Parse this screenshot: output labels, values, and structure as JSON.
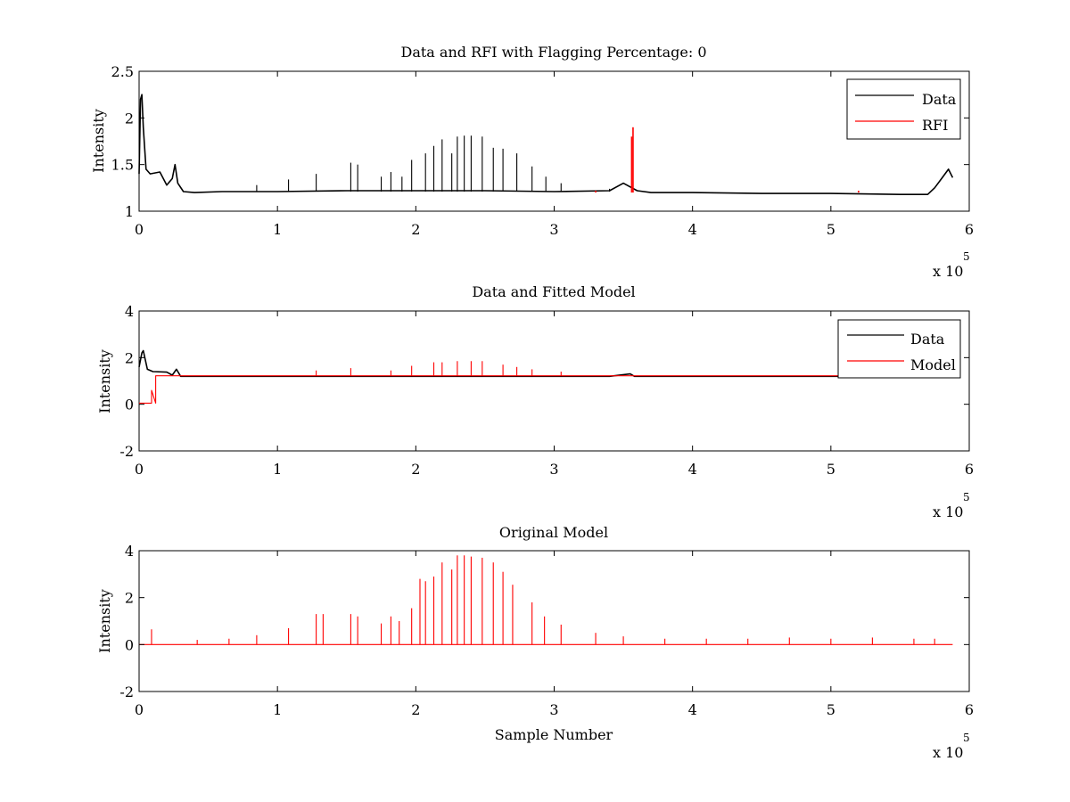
{
  "figure": {
    "background": "#ffffff"
  },
  "colors": {
    "data": "#000000",
    "rfi": "#ff0000",
    "model": "#ff0000"
  },
  "chart_data": [
    {
      "type": "line",
      "title": "Data and RFI with Flagging Percentage: 0",
      "xlabel": "",
      "ylabel": "Intensity",
      "xlim": [
        0,
        600000
      ],
      "ylim": [
        1,
        2.5
      ],
      "xticks": [
        0,
        100000,
        200000,
        300000,
        400000,
        500000,
        600000
      ],
      "xtick_labels": [
        "0",
        "1",
        "2",
        "3",
        "4",
        "5",
        "6"
      ],
      "yticks": [
        1,
        1.5,
        2,
        2.5
      ],
      "ytick_labels": [
        "1",
        "1.5",
        "2",
        "2.5"
      ],
      "x_multiplier_base": "x 10",
      "x_multiplier_exp": "5",
      "grid": false,
      "legend": {
        "position": "top-right",
        "entries": [
          "Data",
          "RFI"
        ]
      },
      "series": [
        {
          "name": "Data",
          "color": "#000000",
          "x": [
            0,
            1000,
            2000,
            3000,
            5000,
            8000,
            15000,
            20000,
            24000,
            26000,
            28000,
            32000,
            40000,
            60000,
            100000,
            150000,
            200000,
            250000,
            300000,
            340000,
            350000,
            360000,
            370000,
            400000,
            450000,
            500000,
            550000,
            570000,
            575000,
            580000,
            585000,
            588000
          ],
          "y": [
            1.4,
            2.2,
            2.25,
            1.9,
            1.45,
            1.4,
            1.42,
            1.28,
            1.35,
            1.5,
            1.3,
            1.21,
            1.2,
            1.21,
            1.21,
            1.22,
            1.22,
            1.22,
            1.21,
            1.22,
            1.3,
            1.22,
            1.2,
            1.2,
            1.19,
            1.19,
            1.18,
            1.18,
            1.25,
            1.35,
            1.45,
            1.36
          ],
          "spikes": [
            {
              "x": 85000,
              "y": 1.28
            },
            {
              "x": 108000,
              "y": 1.34
            },
            {
              "x": 128000,
              "y": 1.4
            },
            {
              "x": 153000,
              "y": 1.52
            },
            {
              "x": 158000,
              "y": 1.5
            },
            {
              "x": 175000,
              "y": 1.37
            },
            {
              "x": 182000,
              "y": 1.42
            },
            {
              "x": 190000,
              "y": 1.37
            },
            {
              "x": 197000,
              "y": 1.55
            },
            {
              "x": 207000,
              "y": 1.62
            },
            {
              "x": 213000,
              "y": 1.7
            },
            {
              "x": 219000,
              "y": 1.77
            },
            {
              "x": 226000,
              "y": 1.62
            },
            {
              "x": 230000,
              "y": 1.8
            },
            {
              "x": 235000,
              "y": 1.81
            },
            {
              "x": 240000,
              "y": 1.81
            },
            {
              "x": 248000,
              "y": 1.8
            },
            {
              "x": 256000,
              "y": 1.68
            },
            {
              "x": 263000,
              "y": 1.67
            },
            {
              "x": 273000,
              "y": 1.62
            },
            {
              "x": 284000,
              "y": 1.48
            },
            {
              "x": 294000,
              "y": 1.37
            },
            {
              "x": 305000,
              "y": 1.3
            },
            {
              "x": 340000,
              "y": 1.24
            }
          ]
        },
        {
          "name": "RFI",
          "color": "#ff0000",
          "x": [
            330000,
            356000,
            357000,
            520000
          ],
          "y": [
            1.22,
            1.8,
            1.9,
            1.22
          ]
        }
      ]
    },
    {
      "type": "line",
      "title": "Data and Fitted Model",
      "xlabel": "",
      "ylabel": "Intensity",
      "xlim": [
        0,
        600000
      ],
      "ylim": [
        -2,
        4
      ],
      "xticks": [
        0,
        100000,
        200000,
        300000,
        400000,
        500000,
        600000
      ],
      "xtick_labels": [
        "0",
        "1",
        "2",
        "3",
        "4",
        "5",
        "6"
      ],
      "yticks": [
        -2,
        0,
        2,
        4
      ],
      "ytick_labels": [
        "-2",
        "0",
        "2",
        "4"
      ],
      "x_multiplier_base": "x 10",
      "x_multiplier_exp": "5",
      "grid": false,
      "legend": {
        "position": "top-right",
        "entries": [
          "Data",
          "Model"
        ]
      },
      "series": [
        {
          "name": "Data",
          "color": "#000000",
          "x": [
            0,
            2000,
            3000,
            6000,
            10000,
            20000,
            24000,
            27000,
            30000,
            40000,
            340000,
            355000,
            358000,
            365000,
            510000
          ],
          "y": [
            1.6,
            2.2,
            2.3,
            1.5,
            1.4,
            1.38,
            1.25,
            1.5,
            1.2,
            1.2,
            1.2,
            1.3,
            1.2,
            1.2,
            1.2
          ]
        },
        {
          "name": "Model",
          "color": "#ff0000",
          "x": [
            0,
            9000,
            9000,
            12000,
            12000,
            510000
          ],
          "y": [
            0.05,
            0.05,
            0.6,
            0.05,
            1.22,
            1.22
          ],
          "spikes": [
            {
              "x": 128000,
              "y": 1.45
            },
            {
              "x": 153000,
              "y": 1.55
            },
            {
              "x": 182000,
              "y": 1.45
            },
            {
              "x": 197000,
              "y": 1.65
            },
            {
              "x": 213000,
              "y": 1.8
            },
            {
              "x": 219000,
              "y": 1.8
            },
            {
              "x": 230000,
              "y": 1.85
            },
            {
              "x": 240000,
              "y": 1.85
            },
            {
              "x": 248000,
              "y": 1.85
            },
            {
              "x": 263000,
              "y": 1.7
            },
            {
              "x": 273000,
              "y": 1.6
            },
            {
              "x": 284000,
              "y": 1.5
            },
            {
              "x": 305000,
              "y": 1.4
            }
          ]
        }
      ]
    },
    {
      "type": "line",
      "title": "Original Model",
      "xlabel": "Sample Number",
      "ylabel": "Intensity",
      "xlim": [
        0,
        600000
      ],
      "ylim": [
        -2,
        4
      ],
      "xticks": [
        0,
        100000,
        200000,
        300000,
        400000,
        500000,
        600000
      ],
      "xtick_labels": [
        "0",
        "1",
        "2",
        "3",
        "4",
        "5",
        "6"
      ],
      "yticks": [
        -2,
        0,
        2,
        4
      ],
      "ytick_labels": [
        "-2",
        "0",
        "2",
        "4"
      ],
      "x_multiplier_base": "x 10",
      "x_multiplier_exp": "5",
      "grid": false,
      "series": [
        {
          "name": "Original Model",
          "color": "#ff0000",
          "x": [
            0,
            588000
          ],
          "y": [
            0.0,
            0.0
          ],
          "spikes": [
            {
              "x": 9000,
              "y": 0.65
            },
            {
              "x": 42000,
              "y": 0.2
            },
            {
              "x": 65000,
              "y": 0.25
            },
            {
              "x": 85000,
              "y": 0.4
            },
            {
              "x": 108000,
              "y": 0.7
            },
            {
              "x": 128000,
              "y": 1.3
            },
            {
              "x": 133000,
              "y": 1.3
            },
            {
              "x": 153000,
              "y": 1.3
            },
            {
              "x": 158000,
              "y": 1.2
            },
            {
              "x": 175000,
              "y": 0.9
            },
            {
              "x": 182000,
              "y": 1.2
            },
            {
              "x": 188000,
              "y": 1.0
            },
            {
              "x": 197000,
              "y": 1.55
            },
            {
              "x": 203000,
              "y": 2.8
            },
            {
              "x": 207000,
              "y": 2.7
            },
            {
              "x": 213000,
              "y": 2.9
            },
            {
              "x": 219000,
              "y": 3.5
            },
            {
              "x": 226000,
              "y": 3.2
            },
            {
              "x": 230000,
              "y": 3.8
            },
            {
              "x": 235000,
              "y": 3.8
            },
            {
              "x": 240000,
              "y": 3.75
            },
            {
              "x": 248000,
              "y": 3.7
            },
            {
              "x": 256000,
              "y": 3.5
            },
            {
              "x": 263000,
              "y": 3.1
            },
            {
              "x": 270000,
              "y": 2.55
            },
            {
              "x": 284000,
              "y": 1.8
            },
            {
              "x": 293000,
              "y": 1.2
            },
            {
              "x": 305000,
              "y": 0.85
            },
            {
              "x": 330000,
              "y": 0.5
            },
            {
              "x": 350000,
              "y": 0.35
            },
            {
              "x": 380000,
              "y": 0.25
            },
            {
              "x": 410000,
              "y": 0.25
            },
            {
              "x": 440000,
              "y": 0.25
            },
            {
              "x": 470000,
              "y": 0.3
            },
            {
              "x": 500000,
              "y": 0.25
            },
            {
              "x": 530000,
              "y": 0.3
            },
            {
              "x": 560000,
              "y": 0.25
            },
            {
              "x": 575000,
              "y": 0.25
            }
          ]
        }
      ]
    }
  ]
}
